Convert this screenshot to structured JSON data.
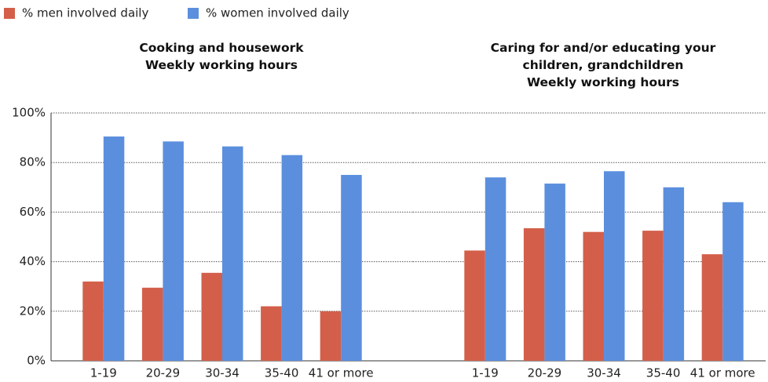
{
  "legend": "top-left",
  "chart_data": [
    {
      "type": "bar",
      "title": "Cooking and housework",
      "subtitle": "Weekly working hours",
      "categories": [
        "1-19",
        "20-29",
        "30-34",
        "35-40",
        "41 or more"
      ],
      "series": [
        {
          "name": "% men involved daily",
          "color": "#d35f4a",
          "values": [
            32,
            29.5,
            35.5,
            22,
            20
          ]
        },
        {
          "name": "% women involved daily",
          "color": "#5b8fde",
          "values": [
            90.5,
            88.5,
            86.5,
            83,
            75
          ]
        }
      ],
      "ylim": [
        0,
        100
      ],
      "yticks": [
        {
          "value": 0,
          "label": "0%"
        },
        {
          "value": 20,
          "label": "20%"
        },
        {
          "value": 40,
          "label": "40%"
        },
        {
          "value": 60,
          "label": "60%"
        },
        {
          "value": 80,
          "label": "80%"
        },
        {
          "value": 100,
          "label": "100%"
        }
      ],
      "grid": true
    },
    {
      "type": "bar",
      "title": "Caring for and/or educating your children, grandchildren",
      "subtitle": "Weekly working hours",
      "categories": [
        "1-19",
        "20-29",
        "30-34",
        "35-40",
        "41 or more"
      ],
      "series": [
        {
          "name": "% men involved daily",
          "color": "#d35f4a",
          "values": [
            44.5,
            53.5,
            52,
            52.5,
            43
          ]
        },
        {
          "name": "% women involved daily",
          "color": "#5b8fde",
          "values": [
            74,
            71.5,
            76.5,
            70,
            64
          ]
        }
      ],
      "ylim": [
        0,
        100
      ],
      "yticks": [
        {
          "value": 0,
          "label": "0%"
        },
        {
          "value": 20,
          "label": "20%"
        },
        {
          "value": 40,
          "label": "40%"
        },
        {
          "value": 60,
          "label": "60%"
        },
        {
          "value": 80,
          "label": "80%"
        },
        {
          "value": 100,
          "label": "100%"
        }
      ],
      "grid": true
    }
  ]
}
